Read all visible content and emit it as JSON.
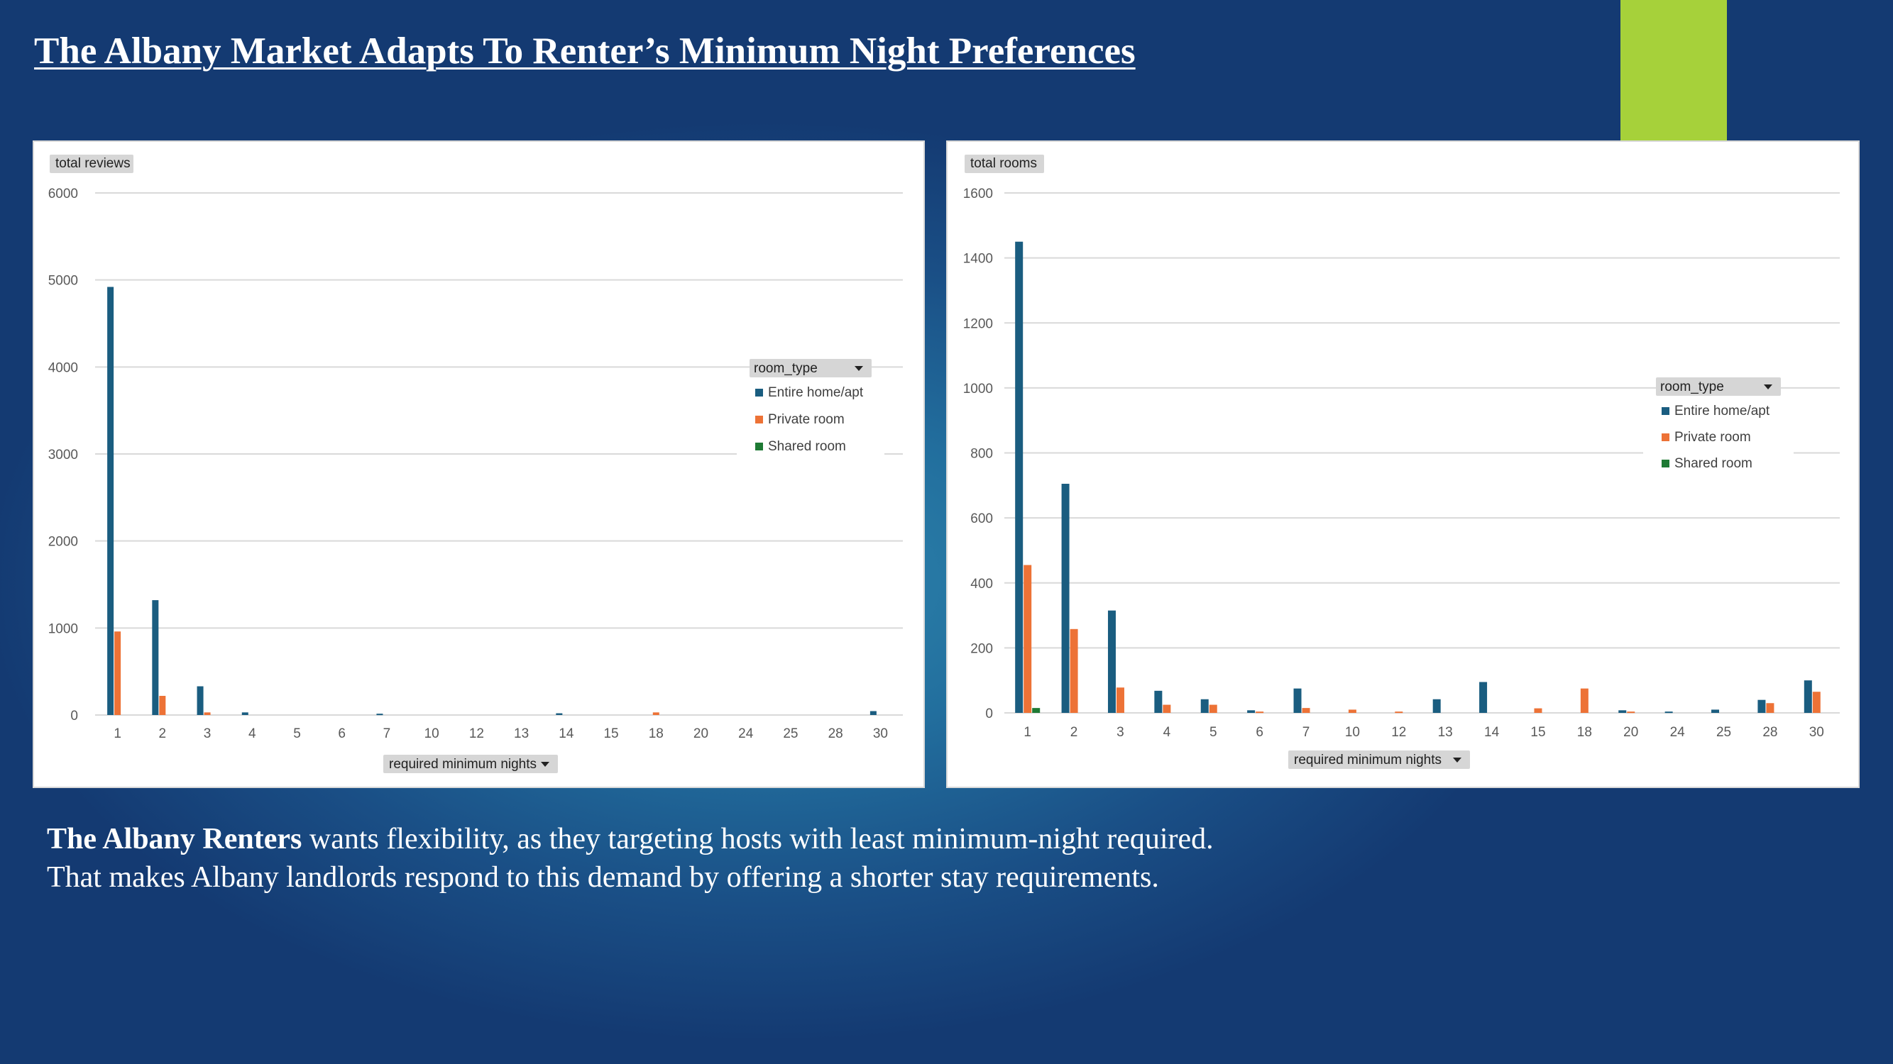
{
  "slide": {
    "title": "The Albany Market Adapts To Renter’s Minimum Night Preferences",
    "caption_bold": "The Albany Renters",
    "caption_rest": " wants flexibility, as they targeting hosts with least minimum-night required.",
    "caption_line2": "That makes Albany landlords respond to this demand by offering a shorter stay requirements.",
    "accent_color": "#a6d13a"
  },
  "chart_data": [
    {
      "type": "bar",
      "title": "",
      "ylabel": "total reviews",
      "xlabel": "required minimum nights",
      "ylim": [
        0,
        6000
      ],
      "yticks": [
        0,
        1000,
        2000,
        3000,
        4000,
        5000,
        6000
      ],
      "grid": true,
      "legend_position": "right",
      "legend_title": "room_type",
      "categories": [
        "1",
        "2",
        "3",
        "4",
        "5",
        "6",
        "7",
        "10",
        "12",
        "13",
        "14",
        "15",
        "18",
        "20",
        "24",
        "25",
        "28",
        "30"
      ],
      "series": [
        {
          "name": "Entire home/apt",
          "color": "#1a5d80",
          "values": [
            4920,
            1320,
            330,
            30,
            0,
            0,
            15,
            0,
            0,
            0,
            20,
            0,
            0,
            0,
            0,
            0,
            0,
            45
          ]
        },
        {
          "name": "Private room",
          "color": "#ed7236",
          "values": [
            960,
            220,
            30,
            0,
            0,
            0,
            0,
            0,
            0,
            0,
            0,
            0,
            30,
            0,
            0,
            0,
            0,
            0
          ]
        },
        {
          "name": "Shared room",
          "color": "#1e7a34",
          "values": [
            0,
            0,
            0,
            0,
            0,
            0,
            0,
            0,
            0,
            0,
            0,
            0,
            0,
            0,
            0,
            0,
            0,
            0
          ]
        }
      ]
    },
    {
      "type": "bar",
      "title": "",
      "ylabel": "total rooms",
      "xlabel": "required minimum nights",
      "ylim": [
        0,
        1600
      ],
      "yticks": [
        0,
        200,
        400,
        600,
        800,
        1000,
        1200,
        1400,
        1600
      ],
      "grid": true,
      "legend_position": "right",
      "legend_title": "room_type",
      "categories": [
        "1",
        "2",
        "3",
        "4",
        "5",
        "6",
        "7",
        "10",
        "12",
        "13",
        "14",
        "15",
        "18",
        "20",
        "24",
        "25",
        "28",
        "30"
      ],
      "series": [
        {
          "name": "Entire home/apt",
          "color": "#1a5d80",
          "values": [
            1450,
            705,
            315,
            68,
            42,
            8,
            75,
            0,
            0,
            42,
            95,
            0,
            0,
            8,
            4,
            10,
            40,
            100
          ]
        },
        {
          "name": "Private room",
          "color": "#ed7236",
          "values": [
            455,
            258,
            78,
            25,
            25,
            4,
            15,
            10,
            4,
            0,
            0,
            14,
            75,
            4,
            0,
            0,
            30,
            65
          ]
        },
        {
          "name": "Shared room",
          "color": "#1e7a34",
          "values": [
            15,
            0,
            0,
            0,
            0,
            0,
            0,
            0,
            0,
            0,
            0,
            0,
            0,
            0,
            0,
            0,
            0,
            0
          ]
        }
      ]
    }
  ]
}
